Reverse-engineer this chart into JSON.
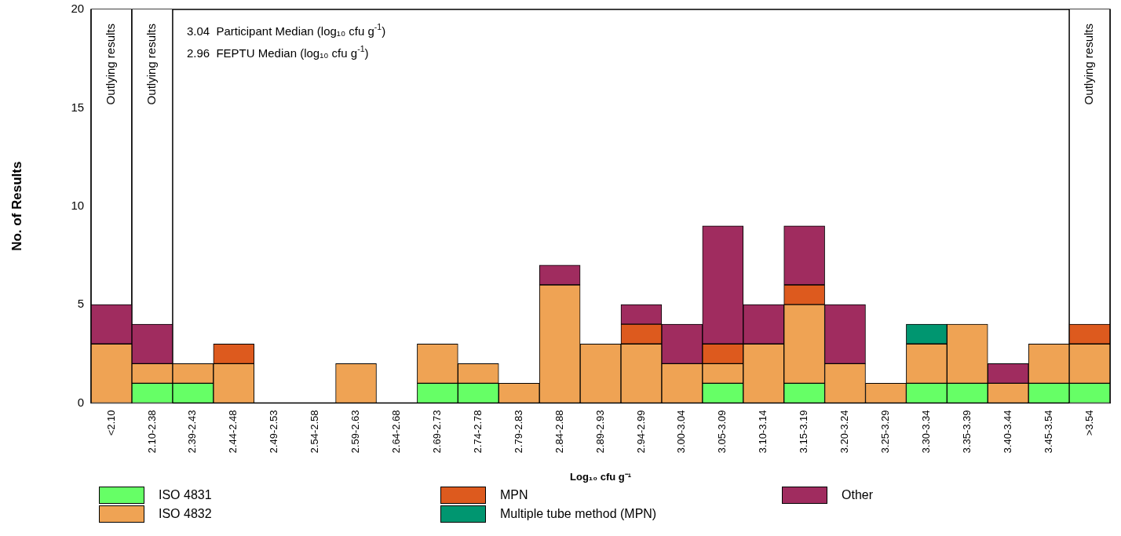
{
  "chart_data": {
    "type": "bar",
    "stacked": true,
    "xlabel": "Log₁₀ cfu g⁻¹",
    "ylabel": "No. of Results",
    "categories": [
      "<2.10",
      "2.10-2.38",
      "2.39-2.43",
      "2.44-2.48",
      "2.49-2.53",
      "2.54-2.58",
      "2.59-2.63",
      "2.64-2.68",
      "2.69-2.73",
      "2.74-2.78",
      "2.79-2.83",
      "2.84-2.88",
      "2.89-2.93",
      "2.94-2.99",
      "3.00-3.04",
      "3.05-3.09",
      "3.10-3.14",
      "3.15-3.19",
      "3.20-3.24",
      "3.25-3.29",
      "3.30-3.34",
      "3.35-3.39",
      "3.40-3.44",
      "3.45-3.54",
      ">3.54"
    ],
    "series": [
      {
        "name": "ISO 4831",
        "color": "#66ff66",
        "values": [
          0,
          1,
          1,
          0,
          0,
          0,
          0,
          0,
          1,
          1,
          0,
          0,
          0,
          0,
          0,
          1,
          0,
          1,
          0,
          0,
          1,
          1,
          0,
          1,
          1
        ]
      },
      {
        "name": "ISO 4832",
        "color": "#efa354",
        "values": [
          3,
          1,
          1,
          2,
          0,
          0,
          2,
          0,
          2,
          1,
          1,
          6,
          3,
          3,
          2,
          1,
          3,
          4,
          2,
          1,
          2,
          3,
          1,
          2,
          2
        ]
      },
      {
        "name": "MPN",
        "color": "#dd5a1e",
        "values": [
          0,
          0,
          0,
          1,
          0,
          0,
          0,
          0,
          0,
          0,
          0,
          0,
          0,
          1,
          0,
          1,
          0,
          1,
          0,
          0,
          0,
          0,
          0,
          0,
          1
        ]
      },
      {
        "name": "Multiple tube method (MPN)",
        "color": "#009670",
        "values": [
          0,
          0,
          0,
          0,
          0,
          0,
          0,
          0,
          0,
          0,
          0,
          0,
          0,
          0,
          0,
          0,
          0,
          0,
          0,
          0,
          1,
          0,
          0,
          0,
          0
        ]
      },
      {
        "name": "Other",
        "color": "#a02c5f",
        "values": [
          2,
          2,
          0,
          0,
          0,
          0,
          0,
          0,
          0,
          0,
          0,
          1,
          0,
          1,
          2,
          6,
          2,
          3,
          3,
          0,
          0,
          0,
          1,
          0,
          0
        ]
      }
    ],
    "ylim": [
      0,
      20
    ],
    "yticks": [
      0,
      5,
      10,
      15,
      20
    ],
    "grid": false,
    "legend": "bottom",
    "bands": [
      {
        "axis": "x",
        "from": "<2.10",
        "to": "<2.10",
        "label": "Outlying results",
        "color": "#ffffff"
      },
      {
        "axis": "x",
        "from": "2.10-2.38",
        "to": "2.10-2.38",
        "label": "Outlying results",
        "color": "#ffffff"
      },
      {
        "axis": "x",
        "from": ">3.54",
        "to": ">3.54",
        "label": "Outlying results",
        "color": "#ffffff"
      }
    ],
    "annotations": [
      "3.04  Participant Median (log₁₀ cfu g$^{-1}$)",
      "2.96  FEPTU Median (log₁₀ cfu g$^{-1}$)"
    ]
  }
}
